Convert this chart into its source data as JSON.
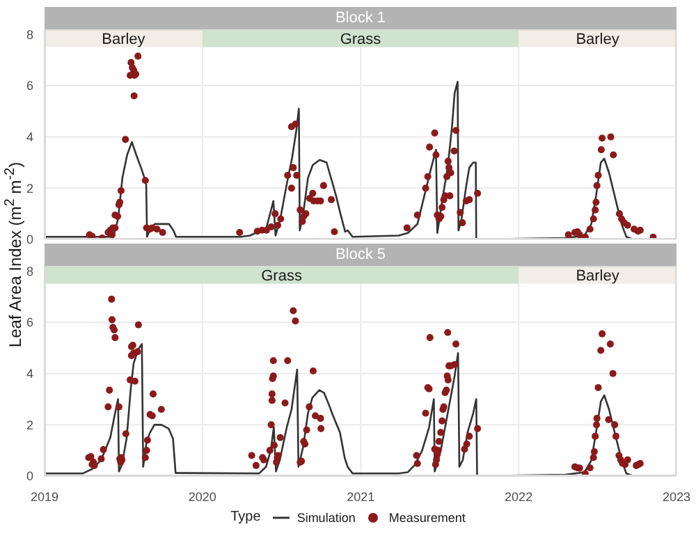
{
  "chart_data": [
    {
      "type": "line",
      "title": "Block 1",
      "ylabel": "Leaf Area Index (m$^{2}$ m$^{-2}$)",
      "legend_title": "Type",
      "xlim": [
        "2019-01-01",
        "2023-01-01"
      ],
      "xticks": [
        {
          "value": "2019-01-01",
          "label": null
        },
        {
          "value": "2020-01-01",
          "label": null
        },
        {
          "value": "2021-01-01",
          "label": null
        },
        {
          "value": "2022-01-01",
          "label": null
        },
        {
          "value": "2023-01-01",
          "label": null
        }
      ],
      "ylim": [
        0,
        8.2
      ],
      "yticks": [
        0,
        2,
        4,
        6,
        8
      ],
      "grid": true,
      "tick_labels": "y",
      "legend": "bottom",
      "bands": [
        {
          "axis": "x",
          "from": "2019-01-01",
          "to": "2020-01-01",
          "label": "Barley",
          "color": "#f2ede6"
        },
        {
          "axis": "x",
          "from": "2020-01-01",
          "to": "2022-01-01",
          "label": "Grass",
          "color": "#cfe3cf"
        },
        {
          "axis": "x",
          "from": "2022-01-01",
          "to": "2023-01-01",
          "label": "Barley",
          "color": "#f2ede6"
        }
      ],
      "series": [
        {
          "name": "Simulation",
          "type": "line",
          "color": "#333333",
          "marker": "none",
          "x": [
            "2019-01-01",
            "2019-06-09",
            "2019-06-20",
            "2019-06-30",
            "2019-07-11",
            "2019-07-22",
            "2019-08-01",
            "2019-08-12",
            "2019-08-20",
            "2019-08-24",
            "2019-08-26",
            "2019-09-03",
            "2019-09-13",
            "2019-10-16",
            "2019-10-26",
            "2019-11-01",
            "2020-03-30",
            "2020-04-20",
            "2020-05-28",
            "2020-06-13",
            "2020-06-18",
            "2020-06-29",
            "2020-07-15",
            "2020-07-26",
            "2020-08-05",
            "2020-08-11",
            "2020-08-13",
            "2020-08-21",
            "2020-09-01",
            "2020-09-12",
            "2020-09-28",
            "2020-10-14",
            "2020-10-25",
            "2020-11-05",
            "2020-11-15",
            "2020-11-26",
            "2020-12-02",
            "2020-12-13",
            "2021-03-30",
            "2021-04-20",
            "2021-05-12",
            "2021-05-28",
            "2021-06-13",
            "2021-06-24",
            "2021-06-27",
            "2021-07-10",
            "2021-07-21",
            "2021-07-31",
            "2021-08-06",
            "2021-08-13",
            "2021-08-15",
            "2021-08-22",
            "2021-09-02",
            "2021-09-09",
            "2021-09-18",
            "2021-09-24",
            "2021-09-25",
            "2022-04-20",
            "2022-06-02",
            "2022-06-18",
            "2022-06-29",
            "2022-07-10",
            "2022-07-18",
            "2022-07-29",
            "2022-08-11",
            "2022-08-27",
            "2022-09-07",
            "2022-09-23"
          ],
          "values": [
            0.1,
            0.1,
            0.8,
            2.4,
            3.3,
            3.8,
            3.3,
            2.8,
            2.4,
            2.15,
            0.1,
            0.45,
            0.6,
            0.6,
            0.35,
            0.1,
            0.1,
            0.15,
            0.45,
            1.5,
            0.15,
            0.8,
            2.25,
            3.15,
            4.25,
            5.1,
            0.35,
            1.0,
            2.4,
            2.9,
            3.1,
            3.0,
            2.35,
            1.7,
            1.0,
            0.3,
            0.35,
            0.1,
            0.15,
            0.25,
            0.6,
            1.7,
            2.8,
            3.5,
            0.25,
            1.7,
            2.8,
            4.4,
            5.7,
            6.15,
            0.35,
            0.8,
            2.1,
            2.8,
            3.0,
            3.0,
            0.0,
            0.05,
            0.15,
            0.6,
            1.7,
            3.0,
            3.15,
            2.6,
            1.7,
            0.6,
            0.1,
            0.0
          ]
        },
        {
          "name": "Measurement",
          "type": "scatter",
          "color": "#8b1a1a",
          "marker": "circle",
          "x": [
            "2019-04-15",
            "2019-04-21",
            "2019-05-14",
            "2019-05-28",
            "2019-06-02",
            "2019-06-08",
            "2019-06-13",
            "2019-06-06",
            "2019-06-13",
            "2019-06-19",
            "2019-06-22",
            "2019-06-24",
            "2019-06-27",
            "2019-07-07",
            "2019-07-18",
            "2019-07-20",
            "2019-07-23",
            "2019-07-26",
            "2019-07-28",
            "2019-07-31",
            "2019-08-05",
            "2019-07-27",
            "2019-08-22",
            "2019-08-25",
            "2019-09-02",
            "2019-09-07",
            "2019-09-18",
            "2019-10-01",
            "2020-03-27",
            "2020-05-07",
            "2020-05-18",
            "2020-05-28",
            "2020-06-08",
            "2020-06-17",
            "2020-06-23",
            "2020-06-30",
            "2020-07-16",
            "2020-07-25",
            "2020-07-29",
            "2020-07-25",
            "2020-08-03",
            "2020-08-06",
            "2020-08-14",
            "2020-08-19",
            "2020-08-22",
            "2020-08-27",
            "2020-09-05",
            "2020-09-12",
            "2020-09-14",
            "2020-09-23",
            "2020-09-30",
            "2020-10-07",
            "2020-10-25",
            "2020-11-01",
            "2021-04-18",
            "2021-05-12",
            "2021-05-31",
            "2021-06-05",
            "2021-06-09",
            "2021-06-21",
            "2021-06-24",
            "2021-06-27",
            "2021-07-01",
            "2021-07-05",
            "2021-07-08",
            "2021-07-12",
            "2021-07-15",
            "2021-07-19",
            "2021-07-22",
            "2021-07-24",
            "2021-07-28",
            "2021-07-26",
            "2021-08-05",
            "2021-08-09",
            "2021-08-19",
            "2021-08-24",
            "2021-09-02",
            "2021-09-09",
            "2021-09-28",
            "2022-04-26",
            "2022-05-11",
            "2022-05-17",
            "2022-05-22",
            "2022-06-04",
            "2022-06-15",
            "2022-06-23",
            "2022-06-27",
            "2022-06-29",
            "2022-07-01",
            "2022-07-04",
            "2022-07-11",
            "2022-07-13",
            "2022-08-02",
            "2022-08-08",
            "2022-08-22",
            "2022-08-27",
            "2022-09-02",
            "2022-09-10",
            "2022-09-25",
            "2022-10-04",
            "2022-10-09",
            "2022-11-08"
          ],
          "values": [
            0.18,
            0.12,
            0.05,
            0.27,
            0.36,
            0.45,
            0.45,
            0.18,
            0.95,
            0.9,
            1.35,
            1.45,
            1.9,
            3.9,
            6.4,
            6.9,
            6.7,
            6.6,
            6.4,
            6.45,
            7.15,
            5.6,
            2.3,
            0.45,
            0.4,
            0.45,
            0.4,
            0.27,
            0.27,
            0.32,
            0.36,
            0.36,
            0.49,
            1.0,
            0.55,
            0.8,
            2.5,
            2.0,
            2.8,
            4.4,
            4.5,
            2.5,
            1.15,
            0.7,
            0.9,
            1.0,
            1.6,
            1.8,
            1.5,
            1.5,
            1.5,
            2.1,
            1.55,
            0.3,
            0.45,
            0.95,
            2.0,
            2.45,
            3.6,
            4.15,
            3.3,
            0.95,
            0.8,
            0.9,
            1.25,
            1.55,
            1.7,
            2.45,
            3.05,
            2.8,
            2.6,
            1.7,
            3.45,
            4.25,
            1.05,
            0.65,
            1.5,
            1.55,
            1.8,
            0.18,
            0.27,
            0.3,
            0.18,
            0.09,
            0.4,
            0.8,
            1.15,
            1.45,
            2.1,
            2.5,
            3.5,
            3.95,
            4.0,
            3.3,
            1.0,
            0.8,
            0.65,
            0.55,
            0.4,
            0.32,
            0.36,
            0.09
          ]
        }
      ]
    },
    {
      "type": "line",
      "title": "Block 5",
      "xlim": [
        "2019-01-01",
        "2023-01-01"
      ],
      "xticks": [
        {
          "value": "2019-01-01",
          "label": "2019"
        },
        {
          "value": "2020-01-01",
          "label": "2020"
        },
        {
          "value": "2021-01-01",
          "label": "2021"
        },
        {
          "value": "2022-01-01",
          "label": "2022"
        },
        {
          "value": "2023-01-01",
          "label": "2023"
        }
      ],
      "ylim": [
        0,
        8.2
      ],
      "yticks": [
        0,
        2,
        4,
        6,
        8
      ],
      "grid": true,
      "bands": [
        {
          "axis": "x",
          "from": "2019-01-01",
          "to": "2022-01-01",
          "label": "Grass",
          "color": "#cfe3cf"
        },
        {
          "axis": "x",
          "from": "2022-01-01",
          "to": "2023-01-01",
          "label": "Barley",
          "color": "#f2ede6"
        }
      ],
      "series": [
        {
          "type": "line",
          "color": "#333333",
          "marker": "none",
          "x": [
            "2019-01-01",
            "2019-03-30",
            "2019-04-21",
            "2019-05-12",
            "2019-06-02",
            "2019-06-13",
            "2019-06-20",
            "2019-06-22",
            "2019-06-29",
            "2019-07-10",
            "2019-07-19",
            "2019-07-26",
            "2019-08-06",
            "2019-08-14",
            "2019-08-17",
            "2019-08-25",
            "2019-09-02",
            "2019-09-12",
            "2019-09-28",
            "2019-10-15",
            "2019-10-25",
            "2019-10-31",
            "2020-05-11",
            "2020-05-27",
            "2020-06-07",
            "2020-06-14",
            "2020-06-19",
            "2020-06-28",
            "2020-07-14",
            "2020-07-25",
            "2020-08-07",
            "2020-08-10",
            "2020-08-21",
            "2020-09-01",
            "2020-09-11",
            "2020-09-27",
            "2020-10-08",
            "2020-10-19",
            "2020-10-29",
            "2020-11-14",
            "2020-11-25",
            "2020-12-02",
            "2020-12-13",
            "2021-03-30",
            "2021-04-20",
            "2021-05-07",
            "2021-05-23",
            "2021-06-08",
            "2021-06-19",
            "2021-06-21",
            "2021-06-26",
            "2021-07-05",
            "2021-07-15",
            "2021-07-26",
            "2021-08-06",
            "2021-08-14",
            "2021-08-17",
            "2021-08-25",
            "2021-09-05",
            "2021-09-18",
            "2021-09-25",
            "2021-09-27",
            "2022-04-20",
            "2022-06-02",
            "2022-06-18",
            "2022-06-29",
            "2022-07-10",
            "2022-07-18",
            "2022-07-29",
            "2022-08-11",
            "2022-08-27",
            "2022-09-07",
            "2022-09-23"
          ],
          "values": [
            0.1,
            0.1,
            0.27,
            0.63,
            1.5,
            2.45,
            3.0,
            0.18,
            0.45,
            1.5,
            3.35,
            4.4,
            4.95,
            5.15,
            0.36,
            1.35,
            1.7,
            2.0,
            2.0,
            1.85,
            1.45,
            0.12,
            0.1,
            0.36,
            1.0,
            1.9,
            0.18,
            0.63,
            1.9,
            2.6,
            4.15,
            0.36,
            1.15,
            2.45,
            3.05,
            3.35,
            3.25,
            2.8,
            2.35,
            1.7,
            0.7,
            0.35,
            0.1,
            0.1,
            0.15,
            0.45,
            1.0,
            1.9,
            3.0,
            0.18,
            0.45,
            1.0,
            1.9,
            2.9,
            3.9,
            4.8,
            0.36,
            0.63,
            1.7,
            2.45,
            3.0,
            0.0,
            0.05,
            0.15,
            0.6,
            1.7,
            2.9,
            3.15,
            2.6,
            1.7,
            0.63,
            0.1,
            0.0
          ]
        },
        {
          "type": "scatter",
          "color": "#8b1a1a",
          "marker": "circle",
          "x": [
            "2019-04-13",
            "2019-04-18",
            "2019-04-21",
            "2019-04-24",
            "2019-04-26",
            "2019-05-12",
            "2019-05-17",
            "2019-05-28",
            "2019-05-31",
            "2019-06-05",
            "2019-06-06",
            "2019-06-08",
            "2019-06-11",
            "2019-06-13",
            "2019-06-22",
            "2019-06-24",
            "2019-06-26",
            "2019-06-27",
            "2019-06-29",
            "2019-07-08",
            "2019-07-18",
            "2019-07-21",
            "2019-07-24",
            "2019-07-21",
            "2019-07-26",
            "2019-07-29",
            "2019-08-04",
            "2019-08-06",
            "2019-08-22",
            "2019-08-25",
            "2019-08-27",
            "2019-09-02",
            "2019-09-07",
            "2019-09-09",
            "2019-09-28",
            "2020-04-24",
            "2020-05-04",
            "2020-05-19",
            "2020-05-22",
            "2020-06-05",
            "2020-06-08",
            "2020-06-10",
            "2020-06-10",
            "2020-06-11",
            "2020-06-13",
            "2020-06-13",
            "2020-06-15",
            "2020-06-20",
            "2020-06-22",
            "2020-06-24",
            "2020-06-29",
            "2020-07-10",
            "2020-07-16",
            "2020-07-29",
            "2020-08-03",
            "2020-08-14",
            "2020-08-17",
            "2020-08-22",
            "2020-08-25",
            "2020-08-29",
            "2020-09-04",
            "2020-09-13",
            "2020-09-18",
            "2020-09-30",
            "2020-10-01",
            "2021-05-10",
            "2021-05-12",
            "2021-05-31",
            "2021-06-05",
            "2021-06-08",
            "2021-06-10",
            "2021-06-21",
            "2021-06-23",
            "2021-06-25",
            "2021-06-27",
            "2021-06-29",
            "2021-07-01",
            "2021-07-05",
            "2021-07-08",
            "2021-07-10",
            "2021-07-12",
            "2021-07-15",
            "2021-07-18",
            "2021-07-20",
            "2021-07-22",
            "2021-07-24",
            "2021-07-28",
            "2021-07-21",
            "2021-08-06",
            "2021-08-09",
            "2021-08-29",
            "2021-09-03",
            "2021-09-09",
            "2021-09-28",
            "2022-05-11",
            "2022-05-17",
            "2022-05-22",
            "2022-06-04",
            "2022-06-15",
            "2022-06-23",
            "2022-06-25",
            "2022-06-27",
            "2022-06-30",
            "2022-07-01",
            "2022-07-04",
            "2022-07-10",
            "2022-07-13",
            "2022-08-01",
            "2022-08-07",
            "2022-07-28",
            "2022-08-11",
            "2022-08-14",
            "2022-08-21",
            "2022-08-25",
            "2022-08-29",
            "2022-09-04",
            "2022-09-10",
            "2022-09-30",
            "2022-10-05",
            "2022-10-09"
          ],
          "values": [
            0.72,
            0.76,
            0.45,
            0.54,
            0.41,
            0.67,
            1.03,
            2.7,
            3.35,
            6.9,
            6.1,
            5.8,
            5.7,
            5.4,
            2.7,
            0.67,
            0.54,
            0.72,
            0.63,
            1.65,
            3.75,
            5.05,
            5.1,
            4.7,
            4.8,
            3.7,
            4.85,
            5.9,
            0.72,
            1.0,
            1.4,
            2.4,
            2.35,
            3.2,
            2.6,
            0.8,
            0.41,
            0.72,
            0.63,
            1.0,
            2.0,
            2.95,
            3.2,
            3.8,
            3.9,
            4.5,
            1.2,
            0.54,
            0.72,
            0.8,
            1.5,
            2.85,
            4.5,
            6.45,
            6.05,
            0.54,
            0.58,
            1.35,
            1.25,
            1.8,
            2.7,
            4.1,
            2.35,
            2.25,
            1.85,
            0.8,
            0.49,
            2.45,
            3.45,
            3.4,
            5.4,
            1.05,
            0.45,
            0.63,
            0.85,
            1.0,
            1.35,
            1.7,
            2.15,
            2.6,
            2.7,
            3.25,
            3.35,
            3.9,
            3.75,
            4.3,
            4.3,
            5.6,
            4.35,
            5.15,
            1.05,
            1.25,
            1.55,
            1.85,
            0.36,
            0.32,
            0.31,
            0.09,
            0.32,
            0.72,
            0.95,
            1.55,
            2.0,
            2.25,
            3.45,
            4.9,
            5.55,
            5.15,
            4.0,
            2.2,
            2.0,
            1.55,
            0.8,
            0.63,
            0.5,
            0.45,
            0.63,
            0.41,
            0.45,
            0.49
          ]
        }
      ]
    }
  ]
}
